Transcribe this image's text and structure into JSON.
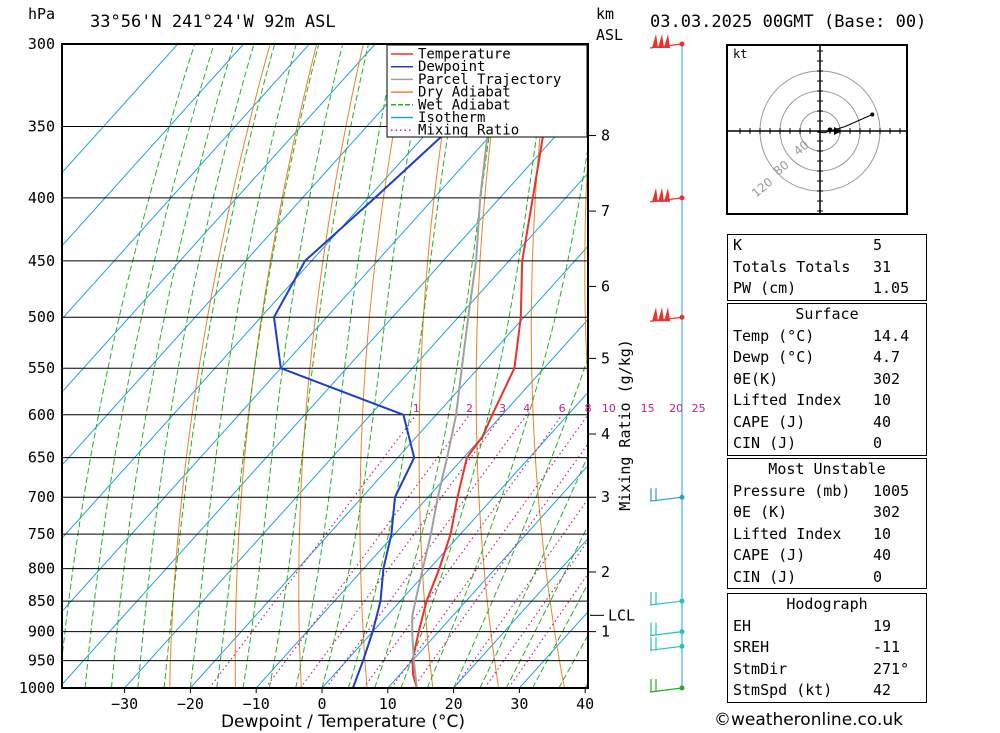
{
  "header": {
    "hpa_label": "hPa",
    "location": "33°56'N 241°24'W 92m ASL",
    "km_label": "km",
    "asl_label": "ASL",
    "datetime": "03.03.2025 00GMT (Base: 00)"
  },
  "chart_data": {
    "type": "line",
    "subtype": "skew-t log-p",
    "xlabel": "Dewpoint / Temperature (°C)",
    "x_ticks": [
      -30,
      -20,
      -10,
      0,
      10,
      20,
      30,
      40
    ],
    "y_pressure_ticks": [
      300,
      350,
      400,
      450,
      500,
      550,
      600,
      650,
      700,
      750,
      800,
      850,
      900,
      950,
      1000
    ],
    "ylim": [
      1000,
      300
    ],
    "km_ticks": [
      {
        "label": "1",
        "p": 900
      },
      {
        "label": "2",
        "p": 805
      },
      {
        "label": "3",
        "p": 700
      },
      {
        "label": "4",
        "p": 622
      },
      {
        "label": "5",
        "p": 540
      },
      {
        "label": "6",
        "p": 472
      },
      {
        "label": "7",
        "p": 410
      },
      {
        "label": "8",
        "p": 356
      }
    ],
    "lcl": {
      "label": "LCL",
      "p": 873
    },
    "mixing_ratio_label": "Mixing Ratio (g/kg)",
    "mixing_ratio_values": [
      1,
      2,
      3,
      4,
      6,
      8,
      10,
      15,
      20,
      25
    ],
    "legend": {
      "placement": "top-center",
      "entries": [
        {
          "name": "Temperature",
          "color": "#e8322e",
          "style": "solid"
        },
        {
          "name": "Dewpoint",
          "color": "#1f3dc8",
          "style": "solid"
        },
        {
          "name": "Parcel Trajectory",
          "color": "#a0a0a0",
          "style": "solid"
        },
        {
          "name": "Dry Adiabat",
          "color": "#e8842a",
          "style": "solid"
        },
        {
          "name": "Wet Adiabat",
          "color": "#22b022",
          "style": "dashed"
        },
        {
          "name": "Isotherm",
          "color": "#22a0dc",
          "style": "solid"
        },
        {
          "name": "Mixing Ratio",
          "color": "#c0208a",
          "style": "dotted"
        }
      ]
    },
    "series": [
      {
        "name": "Temperature",
        "color": "#e8322e",
        "points": [
          [
            1000,
            14.4
          ],
          [
            975,
            12
          ],
          [
            950,
            10
          ],
          [
            925,
            8.5
          ],
          [
            900,
            7
          ],
          [
            875,
            5.5
          ],
          [
            850,
            4
          ],
          [
            800,
            1.5
          ],
          [
            750,
            -1.5
          ],
          [
            700,
            -5.5
          ],
          [
            650,
            -9.5
          ],
          [
            625,
            -10
          ],
          [
            600,
            -11.5
          ],
          [
            550,
            -14.5
          ],
          [
            500,
            -20.5
          ],
          [
            450,
            -28
          ],
          [
            400,
            -35
          ],
          [
            350,
            -43
          ],
          [
            300,
            -51
          ]
        ]
      },
      {
        "name": "Dewpoint",
        "color": "#1f3dc8",
        "points": [
          [
            1000,
            4.7
          ],
          [
            950,
            2.5
          ],
          [
            900,
            0
          ],
          [
            850,
            -3
          ],
          [
            800,
            -7
          ],
          [
            750,
            -10.5
          ],
          [
            700,
            -15
          ],
          [
            650,
            -17.5
          ],
          [
            600,
            -25
          ],
          [
            550,
            -50
          ],
          [
            500,
            -58
          ],
          [
            450,
            -61
          ],
          [
            400,
            -59
          ],
          [
            350,
            -57
          ],
          [
            300,
            -63
          ]
        ]
      },
      {
        "name": "Parcel Trajectory",
        "color": "#a0a0a0",
        "points": [
          [
            1000,
            14.4
          ],
          [
            950,
            10.2
          ],
          [
            900,
            6
          ],
          [
            873,
            3.8
          ],
          [
            850,
            2.3
          ],
          [
            800,
            -1
          ],
          [
            750,
            -4.5
          ],
          [
            700,
            -8.5
          ],
          [
            650,
            -12.5
          ],
          [
            600,
            -17
          ],
          [
            550,
            -22.5
          ],
          [
            500,
            -28.5
          ],
          [
            450,
            -35
          ],
          [
            400,
            -43
          ],
          [
            350,
            -51.5
          ],
          [
            320,
            -57
          ]
        ]
      }
    ],
    "wind_barbs": [
      {
        "p": 1000,
        "color": "#22b022"
      },
      {
        "p": 925,
        "color": "#22c0c0"
      },
      {
        "p": 900,
        "color": "#22c0c0"
      },
      {
        "p": 850,
        "color": "#22c0c0"
      },
      {
        "p": 700,
        "color": "#22a0dc"
      },
      {
        "p": 500,
        "color": "#e8322e"
      },
      {
        "p": 400,
        "color": "#e8322e"
      },
      {
        "p": 300,
        "color": "#e8322e"
      }
    ]
  },
  "hodograph": {
    "unit": "kt",
    "ring_labels": [
      "40",
      "80",
      "120"
    ],
    "trace": [
      [
        0,
        0
      ],
      [
        -5,
        -2
      ],
      [
        8,
        -3
      ],
      [
        45,
        8
      ],
      [
        95,
        30
      ]
    ]
  },
  "indices": [
    {
      "label": "K",
      "value": "5"
    },
    {
      "label": "Totals Totals",
      "value": "31"
    },
    {
      "label": "PW (cm)",
      "value": "1.05"
    }
  ],
  "surface": {
    "title": "Surface",
    "rows": [
      {
        "label": "Temp (°C)",
        "value": "14.4"
      },
      {
        "label": "Dewp (°C)",
        "value": "4.7"
      },
      {
        "label": "θE(K)",
        "value": "302"
      },
      {
        "label": "Lifted Index",
        "value": "10"
      },
      {
        "label": "CAPE (J)",
        "value": "40"
      },
      {
        "label": "CIN (J)",
        "value": "0"
      }
    ]
  },
  "most_unstable": {
    "title": "Most Unstable",
    "rows": [
      {
        "label": "Pressure (mb)",
        "value": "1005"
      },
      {
        "label": "θE (K)",
        "value": "302"
      },
      {
        "label": "Lifted Index",
        "value": "10"
      },
      {
        "label": "CAPE (J)",
        "value": "40"
      },
      {
        "label": "CIN (J)",
        "value": "0"
      }
    ]
  },
  "hodograph_table": {
    "title": "Hodograph",
    "rows": [
      {
        "label": "EH",
        "value": "19"
      },
      {
        "label": "SREH",
        "value": "-11"
      },
      {
        "label": "StmDir",
        "value": "271°"
      },
      {
        "label": "StmSpd (kt)",
        "value": "42"
      }
    ]
  },
  "footer": {
    "credit": "©weatheronline.co.uk"
  }
}
